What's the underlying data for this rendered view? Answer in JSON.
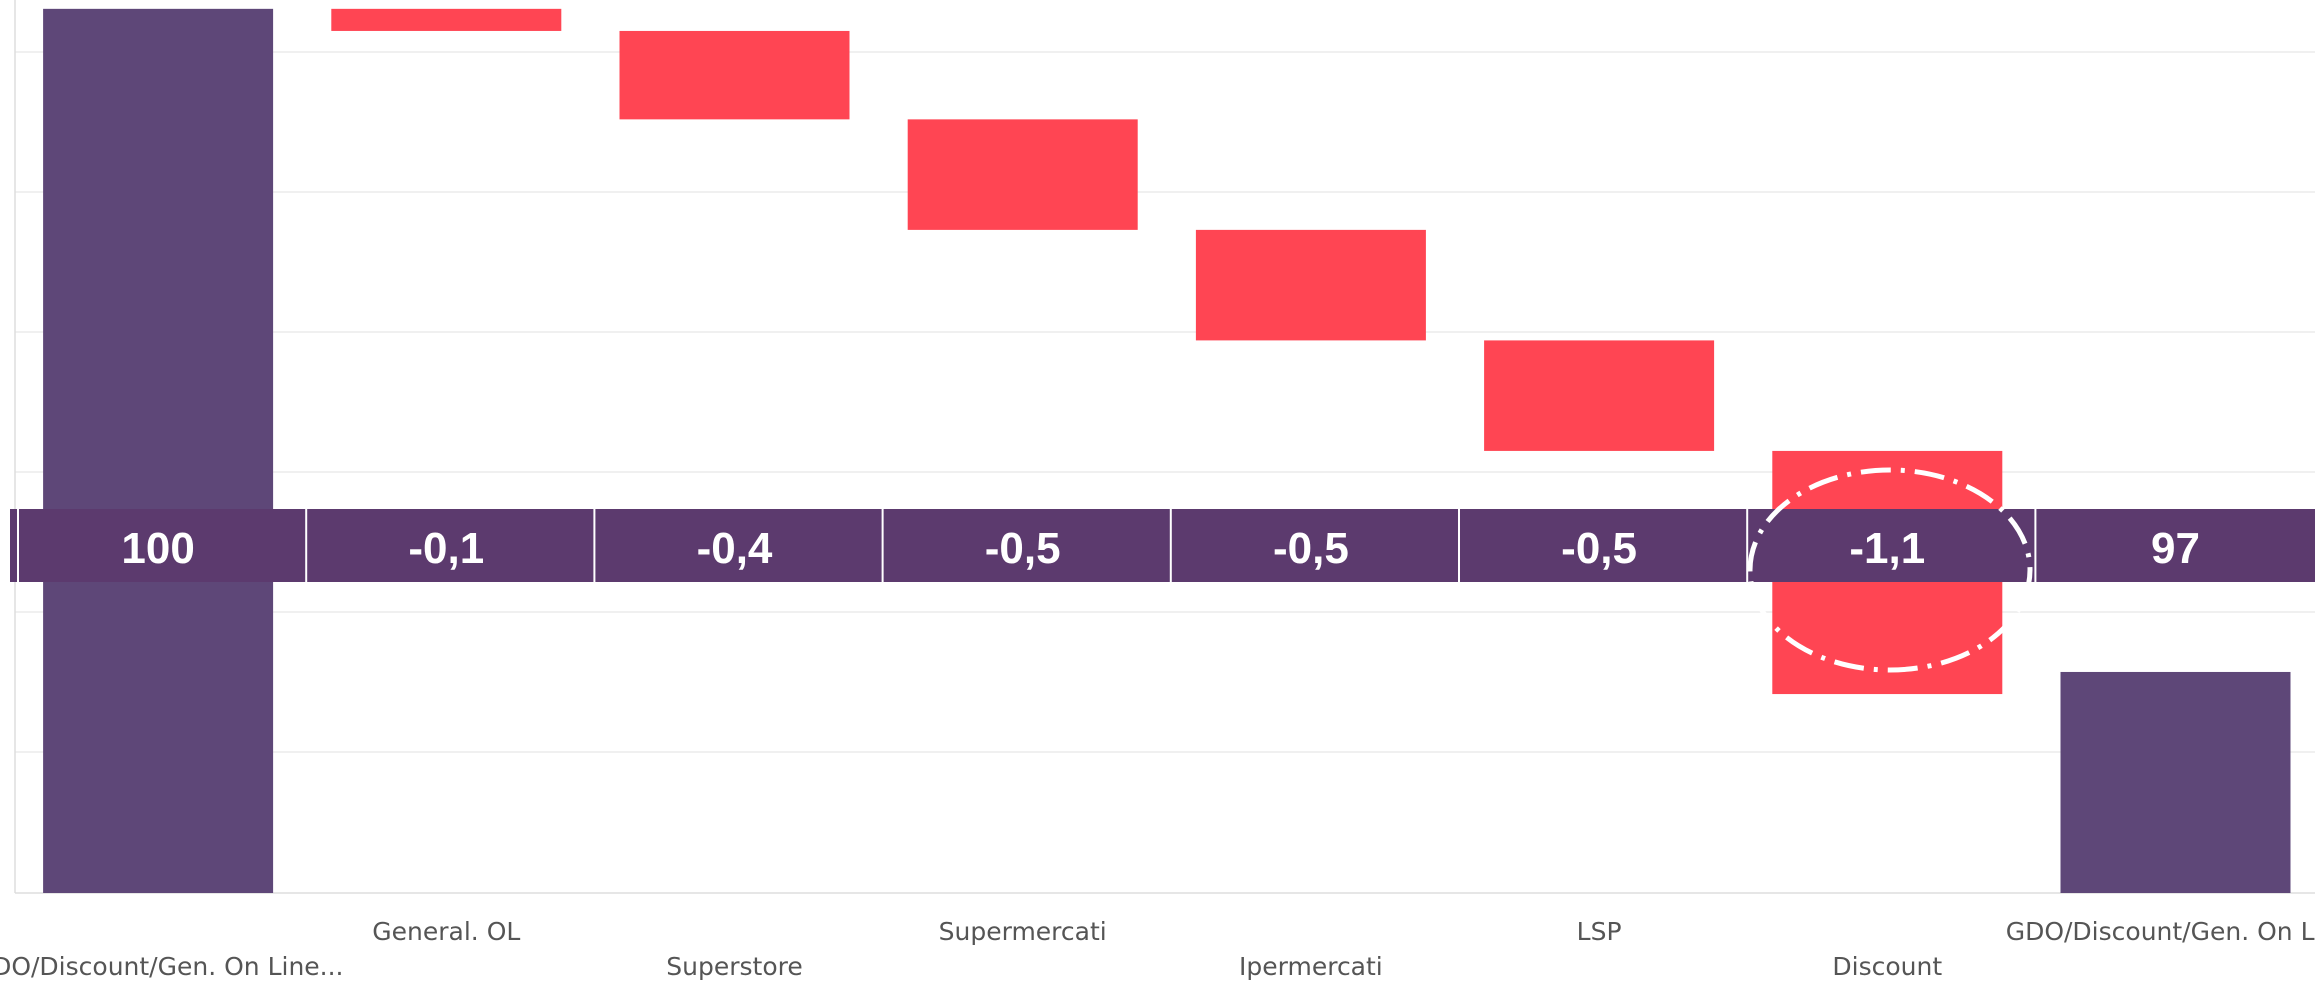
{
  "chart_data": {
    "type": "waterfall",
    "categories": [
      "GDO/Discount/Gen. On Line...",
      "General. OL",
      "Superstore",
      "Supermercati",
      "Ipermercati",
      "LSP",
      "Discount",
      "GDO/Discount/Gen. On Li..."
    ],
    "values": [
      100,
      -0.1,
      -0.4,
      -0.5,
      -0.5,
      -0.5,
      -1.1,
      97
    ],
    "value_labels": [
      "100",
      "-0,1",
      "-0,4",
      "-0,5",
      "-0,5",
      "-0,5",
      "-1,1",
      "97"
    ],
    "is_total": [
      true,
      false,
      false,
      false,
      false,
      false,
      false,
      true
    ],
    "total_color": "#5e4778",
    "decrease_color": "#ff4553",
    "increase_color": "#2ca02c",
    "ylim": [
      96,
      100.04
    ],
    "grid": true
  }
}
